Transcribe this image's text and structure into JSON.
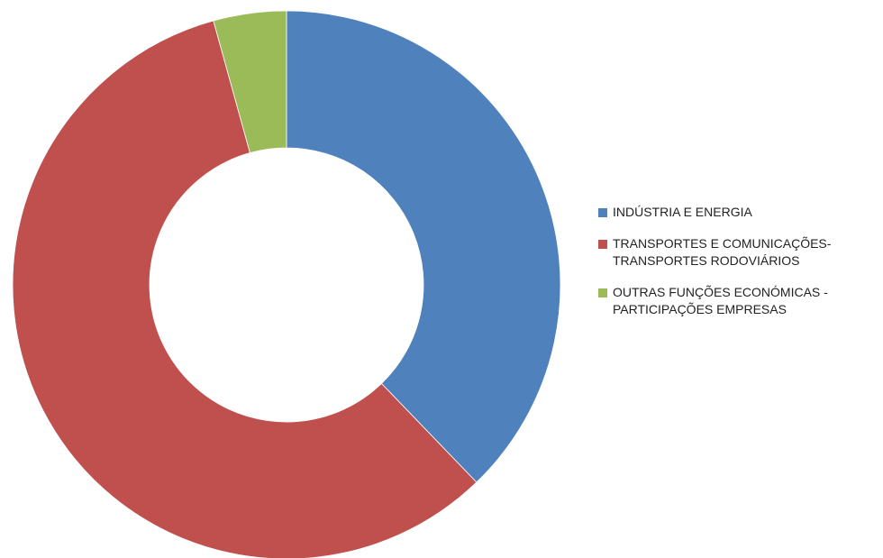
{
  "chart_data": {
    "type": "donut",
    "categories": [
      "INDÚSTRIA E ENERGIA",
      "TRANSPORTES E COMUNICAÇÕES-TRANSPORTES RODOVIÁRIOS",
      "OUTRAS FUNÇÕES ECONÓMICAS - PARTICIPAÇÕES EMPRESAS"
    ],
    "values": [
      37.8,
      57.9,
      4.3
    ],
    "colors": [
      "#4f81bd",
      "#c0504d",
      "#9bbb59"
    ],
    "legend": "right"
  }
}
